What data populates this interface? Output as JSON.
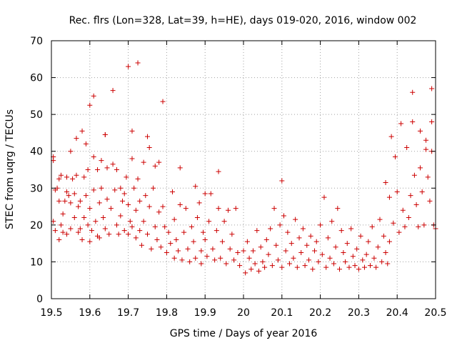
{
  "chart_data": {
    "type": "scatter",
    "title": "Rec. flrs (Lon=328, Lat=39, h=HE), days 019-020, 2016, window 002",
    "xlabel": "GPS time / Days of year 2016",
    "ylabel": "STEC from uqrg / TECUs",
    "xlim": [
      19.5,
      20.5
    ],
    "ylim": [
      0,
      70
    ],
    "xticks": [
      "19.5",
      "19.6",
      "19.7",
      "19.8",
      "19.9",
      "20",
      "20.1",
      "20.2",
      "20.3",
      "20.4",
      "20.5"
    ],
    "yticks": [
      "0",
      "10",
      "20",
      "30",
      "40",
      "50",
      "60",
      "70"
    ],
    "grid": true,
    "marker": "+",
    "color": "#cc0000",
    "series": [
      {
        "name": "",
        "points": [
          [
            19.505,
            38.5
          ],
          [
            19.505,
            37.5
          ],
          [
            19.505,
            21.0
          ],
          [
            19.51,
            18.5
          ],
          [
            19.51,
            29.5
          ],
          [
            19.515,
            30.0
          ],
          [
            19.52,
            32.5
          ],
          [
            19.52,
            16.0
          ],
          [
            19.52,
            26.5
          ],
          [
            19.525,
            33.5
          ],
          [
            19.525,
            20.0
          ],
          [
            19.53,
            18.0
          ],
          [
            19.53,
            23.0
          ],
          [
            19.535,
            26.5
          ],
          [
            19.54,
            33.0
          ],
          [
            19.54,
            17.5
          ],
          [
            19.54,
            29.0
          ],
          [
            19.545,
            28.0
          ],
          [
            19.55,
            40.0
          ],
          [
            19.55,
            26.0
          ],
          [
            19.55,
            19.0
          ],
          [
            19.555,
            32.5
          ],
          [
            19.56,
            22.0
          ],
          [
            19.56,
            28.5
          ],
          [
            19.565,
            33.5
          ],
          [
            19.565,
            43.5
          ],
          [
            19.57,
            18.0
          ],
          [
            19.57,
            25.0
          ],
          [
            19.575,
            19.0
          ],
          [
            19.575,
            26.5
          ],
          [
            19.58,
            45.5
          ],
          [
            19.58,
            16.0
          ],
          [
            19.585,
            33.0
          ],
          [
            19.585,
            22.0
          ],
          [
            19.59,
            42.0
          ],
          [
            19.59,
            28.0
          ],
          [
            19.595,
            35.0
          ],
          [
            19.595,
            20.0
          ],
          [
            19.6,
            52.5
          ],
          [
            19.6,
            15.5
          ],
          [
            19.6,
            24.5
          ],
          [
            19.605,
            18.5
          ],
          [
            19.61,
            55.0
          ],
          [
            19.61,
            38.5
          ],
          [
            19.61,
            29.5
          ],
          [
            19.615,
            21.0
          ],
          [
            19.62,
            35.0
          ],
          [
            19.62,
            17.0
          ],
          [
            19.625,
            16.5
          ],
          [
            19.625,
            26.0
          ],
          [
            19.63,
            37.5
          ],
          [
            19.63,
            30.0
          ],
          [
            19.635,
            22.0
          ],
          [
            19.64,
            44.5
          ],
          [
            19.64,
            44.5
          ],
          [
            19.64,
            19.0
          ],
          [
            19.645,
            35.5
          ],
          [
            19.645,
            27.0
          ],
          [
            19.65,
            17.5
          ],
          [
            19.655,
            24.5
          ],
          [
            19.66,
            56.5
          ],
          [
            19.66,
            36.5
          ],
          [
            19.665,
            29.5
          ],
          [
            19.67,
            20.0
          ],
          [
            19.67,
            35.0
          ],
          [
            19.675,
            17.5
          ],
          [
            19.68,
            30.0
          ],
          [
            19.68,
            22.5
          ],
          [
            19.685,
            26.5
          ],
          [
            19.69,
            18.5
          ],
          [
            19.69,
            28.5
          ],
          [
            19.695,
            33.0
          ],
          [
            19.7,
            63.0
          ],
          [
            19.7,
            17.5
          ],
          [
            19.7,
            25.5
          ],
          [
            19.705,
            21.0
          ],
          [
            19.71,
            45.5
          ],
          [
            19.71,
            38.0
          ],
          [
            19.71,
            19.5
          ],
          [
            19.715,
            30.0
          ],
          [
            19.72,
            16.5
          ],
          [
            19.72,
            24.0
          ],
          [
            19.725,
            64.0
          ],
          [
            19.725,
            32.5
          ],
          [
            19.73,
            18.5
          ],
          [
            19.73,
            26.5
          ],
          [
            19.735,
            14.5
          ],
          [
            19.74,
            37.0
          ],
          [
            19.74,
            21.0
          ],
          [
            19.745,
            28.0
          ],
          [
            19.75,
            44.0
          ],
          [
            19.75,
            17.5
          ],
          [
            19.755,
            41.0
          ],
          [
            19.755,
            25.0
          ],
          [
            19.76,
            13.5
          ],
          [
            19.765,
            30.0
          ],
          [
            19.77,
            36.0
          ],
          [
            19.77,
            19.5
          ],
          [
            19.775,
            16.0
          ],
          [
            19.78,
            23.5
          ],
          [
            19.78,
            37.0
          ],
          [
            19.785,
            14.0
          ],
          [
            19.79,
            53.5
          ],
          [
            19.79,
            25.0
          ],
          [
            19.795,
            19.5
          ],
          [
            19.8,
            12.5
          ],
          [
            19.805,
            18.0
          ],
          [
            19.81,
            15.0
          ],
          [
            19.815,
            29.0
          ],
          [
            19.82,
            11.0
          ],
          [
            19.82,
            21.5
          ],
          [
            19.825,
            16.0
          ],
          [
            19.83,
            13.0
          ],
          [
            19.835,
            35.5
          ],
          [
            19.835,
            25.5
          ],
          [
            19.84,
            10.5
          ],
          [
            19.845,
            18.0
          ],
          [
            19.85,
            24.5
          ],
          [
            19.855,
            13.5
          ],
          [
            19.86,
            10.0
          ],
          [
            19.865,
            19.5
          ],
          [
            19.87,
            15.5
          ],
          [
            19.875,
            30.5
          ],
          [
            19.875,
            11.0
          ],
          [
            19.88,
            22.0
          ],
          [
            19.885,
            26.0
          ],
          [
            19.89,
            13.0
          ],
          [
            19.89,
            9.5
          ],
          [
            19.895,
            18.0
          ],
          [
            19.9,
            28.5
          ],
          [
            19.9,
            16.0
          ],
          [
            19.905,
            11.5
          ],
          [
            19.91,
            21.0
          ],
          [
            19.915,
            28.5
          ],
          [
            19.92,
            13.5
          ],
          [
            19.925,
            10.5
          ],
          [
            19.93,
            18.5
          ],
          [
            19.935,
            34.5
          ],
          [
            19.935,
            24.5
          ],
          [
            19.94,
            11.0
          ],
          [
            19.945,
            15.5
          ],
          [
            19.95,
            21.0
          ],
          [
            19.955,
            9.5
          ],
          [
            19.96,
            24.0
          ],
          [
            19.965,
            13.5
          ],
          [
            19.97,
            17.5
          ],
          [
            19.975,
            10.5
          ],
          [
            19.98,
            24.5
          ],
          [
            19.985,
            12.5
          ],
          [
            19.99,
            9.0
          ],
          [
            20.0,
            13.0
          ],
          [
            20.005,
            7.0
          ],
          [
            20.01,
            15.5
          ],
          [
            20.015,
            11.0
          ],
          [
            20.02,
            8.0
          ],
          [
            20.025,
            13.0
          ],
          [
            20.03,
            9.5
          ],
          [
            20.035,
            18.5
          ],
          [
            20.04,
            7.5
          ],
          [
            20.045,
            14.0
          ],
          [
            20.05,
            10.0
          ],
          [
            20.055,
            8.5
          ],
          [
            20.06,
            16.0
          ],
          [
            20.065,
            12.0
          ],
          [
            20.07,
            19.0
          ],
          [
            20.075,
            9.0
          ],
          [
            20.08,
            24.5
          ],
          [
            20.085,
            14.5
          ],
          [
            20.09,
            10.5
          ],
          [
            20.095,
            20.0
          ],
          [
            20.1,
            32.0
          ],
          [
            20.1,
            8.5
          ],
          [
            20.105,
            22.5
          ],
          [
            20.11,
            13.0
          ],
          [
            20.115,
            18.0
          ],
          [
            20.12,
            9.5
          ],
          [
            20.125,
            15.0
          ],
          [
            20.13,
            11.0
          ],
          [
            20.135,
            21.5
          ],
          [
            20.14,
            8.5
          ],
          [
            20.145,
            16.5
          ],
          [
            20.15,
            12.5
          ],
          [
            20.155,
            19.0
          ],
          [
            20.16,
            9.0
          ],
          [
            20.165,
            14.5
          ],
          [
            20.17,
            10.5
          ],
          [
            20.175,
            17.0
          ],
          [
            20.18,
            8.0
          ],
          [
            20.185,
            13.0
          ],
          [
            20.19,
            15.5
          ],
          [
            20.195,
            10.0
          ],
          [
            20.2,
            20.0
          ],
          [
            20.205,
            12.0
          ],
          [
            20.21,
            27.5
          ],
          [
            20.215,
            8.5
          ],
          [
            20.22,
            16.5
          ],
          [
            20.225,
            11.0
          ],
          [
            20.23,
            21.0
          ],
          [
            20.235,
            9.5
          ],
          [
            20.24,
            14.0
          ],
          [
            20.245,
            24.5
          ],
          [
            20.25,
            8.0
          ],
          [
            20.255,
            18.5
          ],
          [
            20.26,
            12.5
          ],
          [
            20.265,
            10.0
          ],
          [
            20.27,
            15.0
          ],
          [
            20.275,
            8.5
          ],
          [
            20.28,
            19.0
          ],
          [
            20.285,
            11.5
          ],
          [
            20.29,
            9.0
          ],
          [
            20.295,
            13.5
          ],
          [
            20.3,
            8.0
          ],
          [
            20.305,
            17.0
          ],
          [
            20.31,
            10.5
          ],
          [
            20.315,
            8.5
          ],
          [
            20.32,
            12.0
          ],
          [
            20.325,
            15.5
          ],
          [
            20.33,
            9.0
          ],
          [
            20.335,
            19.5
          ],
          [
            20.34,
            11.0
          ],
          [
            20.345,
            8.5
          ],
          [
            20.35,
            14.0
          ],
          [
            20.355,
            21.5
          ],
          [
            20.36,
            10.0
          ],
          [
            20.365,
            17.0
          ],
          [
            20.37,
            31.5
          ],
          [
            20.37,
            12.5
          ],
          [
            20.375,
            9.5
          ],
          [
            20.38,
            27.5
          ],
          [
            20.38,
            15.5
          ],
          [
            20.385,
            44.0
          ],
          [
            20.39,
            20.5
          ],
          [
            20.395,
            38.5
          ],
          [
            20.4,
            29.0
          ],
          [
            20.405,
            18.0
          ],
          [
            20.41,
            47.5
          ],
          [
            20.415,
            24.0
          ],
          [
            20.42,
            19.5
          ],
          [
            20.425,
            41.0
          ],
          [
            20.43,
            22.0
          ],
          [
            20.435,
            28.0
          ],
          [
            20.44,
            56.0
          ],
          [
            20.44,
            48.0
          ],
          [
            20.445,
            33.5
          ],
          [
            20.45,
            25.5
          ],
          [
            20.455,
            19.5
          ],
          [
            20.46,
            45.5
          ],
          [
            20.46,
            35.5
          ],
          [
            20.465,
            29.0
          ],
          [
            20.47,
            20.0
          ],
          [
            20.475,
            43.0
          ],
          [
            20.475,
            40.5
          ],
          [
            20.48,
            33.0
          ],
          [
            20.485,
            26.5
          ],
          [
            20.49,
            57.0
          ],
          [
            20.49,
            48.0
          ],
          [
            20.49,
            40.0
          ],
          [
            20.495,
            20.0
          ],
          [
            20.5,
            19.0
          ]
        ]
      }
    ]
  }
}
